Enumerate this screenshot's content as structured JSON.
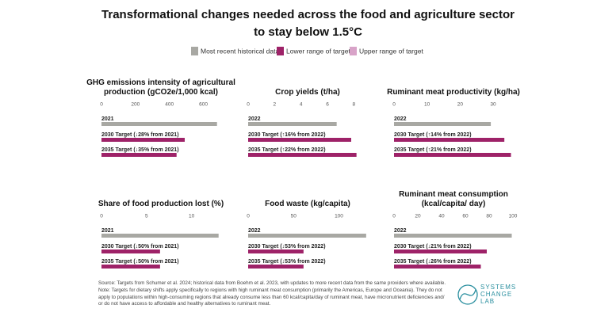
{
  "title": "Transformational changes needed across the food and agriculture sector to stay below 1.5°C",
  "legend": [
    {
      "name": "Most recent historical data",
      "color": "#a8a8a3"
    },
    {
      "name": "Lower range of target",
      "color": "#9e2268"
    },
    {
      "name": "Upper range of target",
      "color": "#d8a3c8"
    }
  ],
  "chart_data": [
    {
      "type": "hbar",
      "title": "GHG emissions intensity of agricultural production (gCO2e/1,000 kcal)",
      "categories": [
        "2021",
        "2030 Target (↓28% from 2021)",
        "2035 Target (↓35% from 2021)"
      ],
      "values": [
        680,
        490,
        442
      ],
      "colors": [
        "#a8a8a3",
        "#9e2268",
        "#9e2268"
      ],
      "xlim": [
        0,
        700
      ],
      "xticks": [
        0,
        200,
        400,
        600
      ]
    },
    {
      "type": "hbar",
      "title": "Crop yields (t/ha)",
      "categories": [
        "2022",
        "2030 Target (↑16% from 2022)",
        "2035 Target (↑22% from 2022)"
      ],
      "values": [
        6.7,
        7.8,
        8.2
      ],
      "colors": [
        "#a8a8a3",
        "#9e2268",
        "#9e2268"
      ],
      "xlim": [
        0,
        9
      ],
      "xticks": [
        0,
        2,
        4,
        6,
        8
      ]
    },
    {
      "type": "hbar",
      "title": "Ruminant meat productivity (kg/ha)",
      "categories": [
        "2022",
        "2030 Target (↑14% from 2022)",
        "2035 Target (↑21% from 2022)"
      ],
      "values": [
        29.3,
        33.4,
        35.4
      ],
      "colors": [
        "#a8a8a3",
        "#9e2268",
        "#9e2268"
      ],
      "xlim": [
        0,
        36
      ],
      "xticks": [
        0,
        10,
        20,
        30
      ]
    },
    {
      "type": "hbar",
      "title": "Share of food production lost (%)",
      "categories": [
        "2021",
        "2030 Target (↓50% from 2021)",
        "2035 Target (↓50% from 2021)"
      ],
      "values": [
        13,
        6.5,
        6.5
      ],
      "colors": [
        "#a8a8a3",
        "#9e2268",
        "#9e2268"
      ],
      "xlim": [
        0,
        13.2
      ],
      "xticks": [
        0,
        5,
        10
      ]
    },
    {
      "type": "hbar",
      "title": "Food waste (kg/capita)",
      "categories": [
        "2022",
        "2030 Target (↓53% from 2022)",
        "2035 Target (↓53% from 2022)"
      ],
      "values": [
        130,
        61,
        61
      ],
      "colors": [
        "#a8a8a3",
        "#9e2268",
        "#9e2268"
      ],
      "xlim": [
        0,
        131
      ],
      "xticks": [
        0,
        50,
        100
      ]
    },
    {
      "type": "hbar",
      "title": "Ruminant meat consumption (kcal/capita/ day)",
      "categories": [
        "2022",
        "2030 Target (↓21% from 2022)",
        "2035 Target (↓26% from 2022)"
      ],
      "values": [
        99,
        78,
        73
      ],
      "colors": [
        "#a8a8a3",
        "#9e2268",
        "#9e2268"
      ],
      "xlim": [
        0,
        100
      ],
      "xticks": [
        0,
        20,
        40,
        60,
        80,
        100
      ]
    }
  ],
  "source": "Source: Targets from Schumer et al. 2024; historical data from Boehm et al. 2023, with updates to more recent data from the same providers where available.",
  "note": "Note: Targets for dietary shifts apply specifically to regions with high ruminant meat consumption (primarily the Americas, Europe and Oceania). They do not apply to populations within high-consuming regions that already consume less than 60 kcal/capita/day of ruminant meat, have micronutrient deficiencies and/ or do not have access to affordable and healthy alternatives to ruminant meat.",
  "logo": [
    "SYSTEMS",
    "CHANGE",
    "LAB"
  ]
}
